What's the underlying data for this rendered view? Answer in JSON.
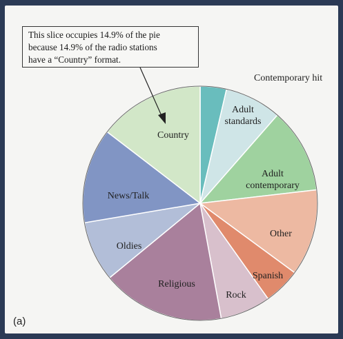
{
  "panel_label": "(a)",
  "callout": {
    "lines": [
      "This slice occupies 14.9% of the pie",
      "because 14.9% of the radio stations",
      "have a “Country” format."
    ]
  },
  "chart_data": {
    "type": "pie",
    "title": "",
    "slices": [
      {
        "label": "Contemporary hit",
        "label_lines": [
          "Contemporary hit"
        ],
        "value": 3.7,
        "color": "#69bdbd"
      },
      {
        "label": "Adult standards",
        "label_lines": [
          "Adult",
          "standards"
        ],
        "value": 8.0,
        "color": "#cfe5e7"
      },
      {
        "label": "Adult contemporary",
        "label_lines": [
          "Adult",
          "contemporary"
        ],
        "value": 12.0,
        "color": "#9fd29f"
      },
      {
        "label": "Other",
        "label_lines": [
          "Other"
        ],
        "value": 12.2,
        "color": "#edb9a2"
      },
      {
        "label": "Spanish",
        "label_lines": [
          "Spanish"
        ],
        "value": 5.2,
        "color": "#e08a6c"
      },
      {
        "label": "Rock",
        "label_lines": [
          "Rock"
        ],
        "value": 7.1,
        "color": "#d8c0cc"
      },
      {
        "label": "Religious",
        "label_lines": [
          "Religious"
        ],
        "value": 17.3,
        "color": "#a9809c"
      },
      {
        "label": "Oldies",
        "label_lines": [
          "Oldies"
        ],
        "value": 8.5,
        "color": "#b2bed8"
      },
      {
        "label": "News/Talk",
        "label_lines": [
          "News/Talk"
        ],
        "value": 13.4,
        "color": "#8195c4"
      },
      {
        "label": "Country",
        "label_lines": [
          "Country"
        ],
        "value": 14.9,
        "color": "#d2e7c8"
      }
    ]
  }
}
